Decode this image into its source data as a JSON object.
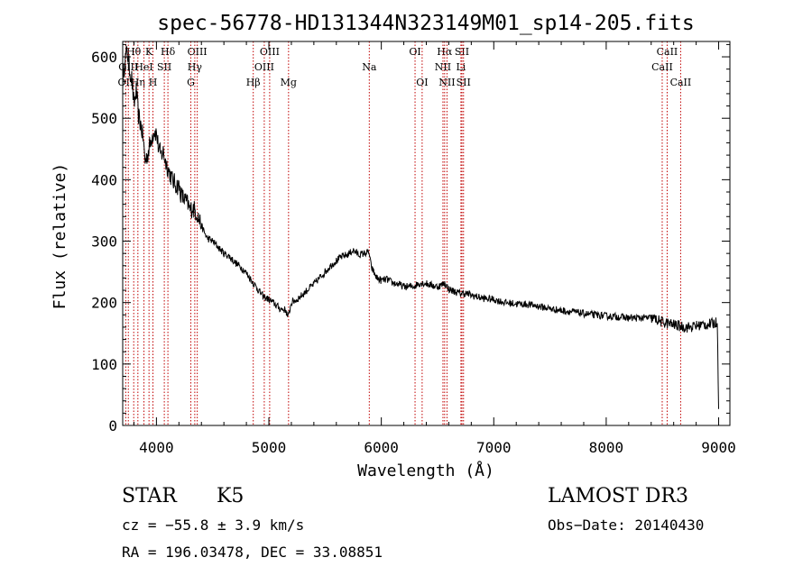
{
  "chart_data": {
    "type": "line",
    "title": "spec-56778-HD131344N323149M01_sp14-205.fits",
    "xlabel": "Wavelength (Å)",
    "ylabel": "Flux (relative)",
    "xlim": [
      3700,
      9100
    ],
    "ylim": [
      0,
      625
    ],
    "xticks": [
      4000,
      5000,
      6000,
      7000,
      8000,
      9000
    ],
    "yticks": [
      0,
      100,
      200,
      300,
      400,
      500,
      600
    ],
    "grid": false,
    "series": [
      {
        "name": "flux",
        "x": [
          3700,
          3720,
          3740,
          3760,
          3780,
          3800,
          3820,
          3840,
          3860,
          3880,
          3900,
          3920,
          3940,
          3960,
          3980,
          4000,
          4020,
          4040,
          4060,
          4080,
          4100,
          4120,
          4140,
          4160,
          4180,
          4200,
          4220,
          4240,
          4260,
          4280,
          4300,
          4320,
          4340,
          4360,
          4380,
          4400,
          4450,
          4500,
          4550,
          4600,
          4650,
          4700,
          4750,
          4800,
          4850,
          4900,
          4950,
          5000,
          5050,
          5100,
          5150,
          5170,
          5200,
          5250,
          5300,
          5350,
          5400,
          5450,
          5500,
          5550,
          5600,
          5650,
          5700,
          5750,
          5800,
          5850,
          5890,
          5910,
          5930,
          5960,
          6000,
          6050,
          6100,
          6150,
          6200,
          6250,
          6300,
          6320,
          6350,
          6400,
          6450,
          6500,
          6550,
          6563,
          6600,
          6650,
          6700,
          6750,
          6800,
          6900,
          7000,
          7100,
          7200,
          7300,
          7400,
          7500,
          7600,
          7700,
          7800,
          7900,
          8000,
          8100,
          8200,
          8300,
          8400,
          8450,
          8500,
          8550,
          8600,
          8650,
          8700,
          8750,
          8800,
          8850,
          8900,
          8950,
          8990,
          9000
        ],
        "y": [
          560,
          595,
          610,
          580,
          565,
          520,
          545,
          505,
          490,
          470,
          430,
          440,
          455,
          470,
          480,
          475,
          450,
          440,
          445,
          430,
          420,
          410,
          400,
          395,
          390,
          390,
          375,
          370,
          365,
          360,
          350,
          355,
          350,
          345,
          335,
          325,
          305,
          300,
          290,
          280,
          275,
          265,
          258,
          248,
          235,
          222,
          210,
          205,
          198,
          190,
          188,
          175,
          200,
          205,
          213,
          222,
          230,
          240,
          250,
          260,
          268,
          275,
          278,
          285,
          278,
          280,
          282,
          258,
          250,
          240,
          236,
          238,
          232,
          230,
          226,
          226,
          227,
          230,
          232,
          231,
          228,
          226,
          230,
          232,
          222,
          218,
          215,
          215,
          212,
          207,
          205,
          200,
          198,
          197,
          194,
          190,
          187,
          185,
          182,
          180,
          178,
          177,
          175,
          175,
          175,
          172,
          168,
          166,
          164,
          162,
          160,
          160,
          162,
          164,
          164,
          166,
          168,
          20
        ]
      }
    ],
    "line_markers": [
      {
        "label": "OII",
        "x": 3727,
        "row": 2
      },
      {
        "label": "Hθ",
        "x": 3798,
        "row": 0
      },
      {
        "label": "OIII",
        "x": 3750,
        "row": 1
      },
      {
        "label": "Hη",
        "x": 3835,
        "row": 2
      },
      {
        "label": "HeI",
        "x": 3889,
        "row": 1
      },
      {
        "label": "K",
        "x": 3934,
        "row": 0
      },
      {
        "label": "H",
        "x": 3969,
        "row": 2
      },
      {
        "label": "SII",
        "x": 4070,
        "row": 1
      },
      {
        "label": "Hδ",
        "x": 4102,
        "row": 0
      },
      {
        "label": "G",
        "x": 4306,
        "row": 2
      },
      {
        "label": "OIII",
        "x": 4363,
        "row": 0
      },
      {
        "label": "Hγ",
        "x": 4341,
        "row": 1
      },
      {
        "label": "Hβ",
        "x": 4861,
        "row": 2
      },
      {
        "label": "OIII",
        "x": 5007,
        "row": 0
      },
      {
        "label": "OIII",
        "x": 4959,
        "row": 1
      },
      {
        "label": "Mg",
        "x": 5175,
        "row": 2
      },
      {
        "label": "Na",
        "x": 5893,
        "row": 1
      },
      {
        "label": "OI",
        "x": 6300,
        "row": 0
      },
      {
        "label": "OI",
        "x": 6363,
        "row": 2
      },
      {
        "label": "Hα",
        "x": 6563,
        "row": 0
      },
      {
        "label": "NII",
        "x": 6548,
        "row": 1
      },
      {
        "label": "NII",
        "x": 6584,
        "row": 2
      },
      {
        "label": "SII",
        "x": 6717,
        "row": 0
      },
      {
        "label": "Li",
        "x": 6708,
        "row": 1
      },
      {
        "label": "SII",
        "x": 6731,
        "row": 2
      },
      {
        "label": "CaII",
        "x": 8542,
        "row": 0
      },
      {
        "label": "CaII",
        "x": 8498,
        "row": 1
      },
      {
        "label": "CaII",
        "x": 8662,
        "row": 2
      }
    ]
  },
  "info": {
    "object_class": "STAR",
    "subclass": "K5",
    "survey": "LAMOST DR3",
    "cz": "cz = −55.8 ± 3.9 km/s",
    "obs_date": "Obs−Date: 20140430",
    "coords": "RA = 196.03478, DEC =  33.08851"
  }
}
